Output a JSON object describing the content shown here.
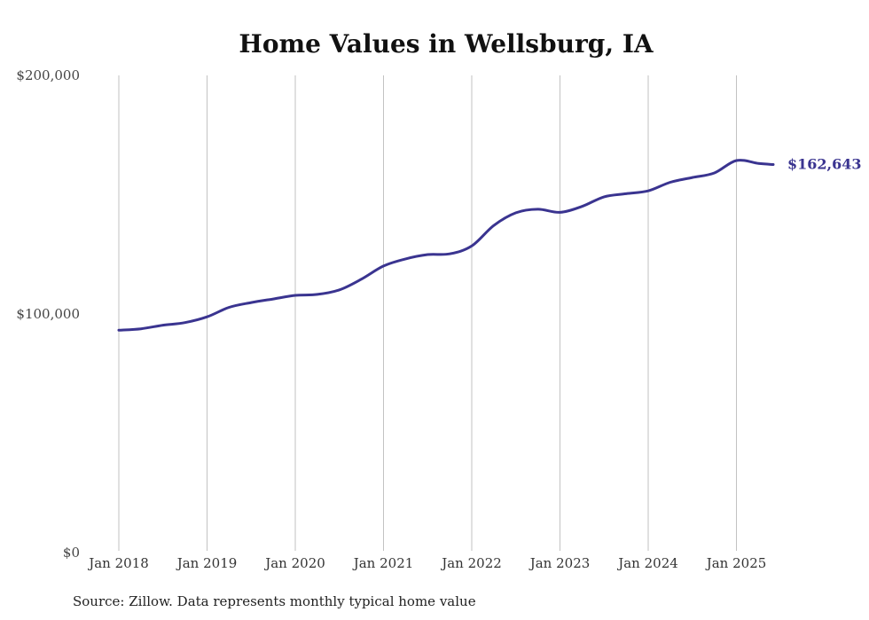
{
  "chart_data": {
    "type": "line",
    "title": "Home Values in Wellsburg, IA",
    "source": "Source: Zillow. Data represents monthly typical home value",
    "y_ticks": [
      "$0",
      "$100,000",
      "$200,000"
    ],
    "ylim": [
      0,
      200000
    ],
    "x_ticks": [
      {
        "label": "Jan 2018",
        "t": 2018.0
      },
      {
        "label": "Jan 2019",
        "t": 2019.0
      },
      {
        "label": "Jan 2020",
        "t": 2020.0
      },
      {
        "label": "Jan 2021",
        "t": 2021.0
      },
      {
        "label": "Jan 2022",
        "t": 2022.0
      },
      {
        "label": "Jan 2023",
        "t": 2023.0
      },
      {
        "label": "Jan 2024",
        "t": 2024.0
      },
      {
        "label": "Jan 2025",
        "t": 2025.0
      }
    ],
    "xlim": [
      2018.0,
      2025.417
    ],
    "grid": "vertical",
    "line_color": "#3a3490",
    "end_label": "$162,643",
    "series": [
      {
        "x": [
          "Jan 2018",
          "Apr 2018",
          "Jul 2018",
          "Oct 2018",
          "Jan 2019",
          "Apr 2019",
          "Jul 2019",
          "Oct 2019",
          "Jan 2020",
          "Apr 2020",
          "Jul 2020",
          "Oct 2020",
          "Jan 2021",
          "Apr 2021",
          "Jul 2021",
          "Oct 2021",
          "Jan 2022",
          "Apr 2022",
          "Jul 2022",
          "Oct 2022",
          "Jan 2023",
          "Apr 2023",
          "Jul 2023",
          "Oct 2023",
          "Jan 2024",
          "Apr 2024",
          "Jul 2024",
          "Oct 2024",
          "Jan 2025",
          "Apr 2025",
          "Jun 2025"
        ],
        "t": [
          2018.0,
          2018.25,
          2018.5,
          2018.75,
          2019.0,
          2019.25,
          2019.5,
          2019.75,
          2020.0,
          2020.25,
          2020.5,
          2020.75,
          2021.0,
          2021.25,
          2021.5,
          2021.75,
          2022.0,
          2022.25,
          2022.5,
          2022.75,
          2023.0,
          2023.25,
          2023.5,
          2023.75,
          2024.0,
          2024.25,
          2024.5,
          2024.75,
          2025.0,
          2025.25,
          2025.417
        ],
        "values": [
          93200,
          93800,
          95300,
          96400,
          98800,
          102800,
          104800,
          106300,
          107800,
          108200,
          110100,
          114600,
          120100,
          123100,
          124900,
          125200,
          128500,
          137100,
          142400,
          143900,
          142600,
          145100,
          149100,
          150400,
          151600,
          155200,
          157200,
          159100,
          164300,
          163100,
          162643
        ]
      }
    ]
  }
}
